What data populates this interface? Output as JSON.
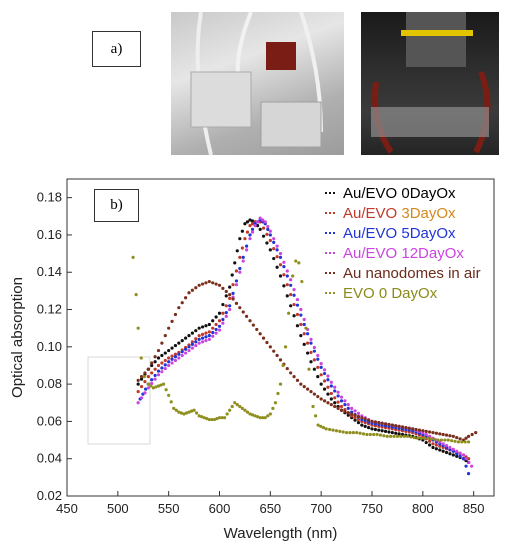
{
  "panels": {
    "a_label": "a)",
    "b_label": "b)"
  },
  "photos": [
    {
      "name": "flow-cell-samples-photo",
      "colors": [
        "#c9c9c9",
        "#7a1d14",
        "#e8e8e8"
      ]
    },
    {
      "name": "microscope-setup-photo",
      "colors": [
        "#1a1a1a",
        "#e2c400",
        "#7a1d14"
      ]
    }
  ],
  "chart_data": {
    "type": "scatter",
    "xlabel": "Wavelength (nm)",
    "ylabel": "Optical absorption",
    "xlim": [
      450,
      870
    ],
    "ylim": [
      0.02,
      0.19
    ],
    "xticks": [
      450,
      500,
      550,
      600,
      650,
      700,
      750,
      800,
      850
    ],
    "yticks": [
      0.02,
      0.04,
      0.06,
      0.08,
      0.1,
      0.12,
      0.14,
      0.16,
      0.18
    ],
    "ytick_labels": [
      "0.02",
      "0.04",
      "0.06",
      "0.08",
      "0.10",
      "0.12",
      "0.14",
      "0.16",
      "0.18"
    ],
    "grid": false,
    "legend_position": "top-right",
    "series": [
      {
        "name": "Au/EVO  0DayOx",
        "name_parts": [
          "Au/EVO  ",
          "0DayOx"
        ],
        "name_colors": [
          "#000000",
          "#000000"
        ],
        "color": "#111111",
        "points": [
          [
            520,
            0.08
          ],
          [
            530,
            0.088
          ],
          [
            540,
            0.094
          ],
          [
            550,
            0.098
          ],
          [
            560,
            0.102
          ],
          [
            570,
            0.106
          ],
          [
            580,
            0.11
          ],
          [
            590,
            0.112
          ],
          [
            600,
            0.118
          ],
          [
            610,
            0.132
          ],
          [
            615,
            0.145
          ],
          [
            620,
            0.158
          ],
          [
            625,
            0.166
          ],
          [
            630,
            0.168
          ],
          [
            635,
            0.167
          ],
          [
            640,
            0.163
          ],
          [
            650,
            0.152
          ],
          [
            660,
            0.138
          ],
          [
            670,
            0.122
          ],
          [
            680,
            0.106
          ],
          [
            690,
            0.092
          ],
          [
            700,
            0.08
          ],
          [
            710,
            0.072
          ],
          [
            720,
            0.066
          ],
          [
            730,
            0.062
          ],
          [
            740,
            0.058
          ],
          [
            750,
            0.056
          ],
          [
            760,
            0.055
          ],
          [
            770,
            0.054
          ],
          [
            780,
            0.053
          ],
          [
            790,
            0.052
          ],
          [
            800,
            0.05
          ],
          [
            810,
            0.046
          ],
          [
            820,
            0.044
          ],
          [
            830,
            0.042
          ],
          [
            840,
            0.04
          ],
          [
            845,
            0.038
          ]
        ]
      },
      {
        "name": "Au/EVO   3DayOx",
        "name_parts": [
          "Au/EVO   ",
          "3DayOx"
        ],
        "name_colors": [
          "#c0392b",
          "#d4881e"
        ],
        "color": "#c0392b",
        "points": [
          [
            520,
            0.076
          ],
          [
            530,
            0.084
          ],
          [
            540,
            0.09
          ],
          [
            550,
            0.094
          ],
          [
            560,
            0.097
          ],
          [
            570,
            0.101
          ],
          [
            580,
            0.106
          ],
          [
            590,
            0.108
          ],
          [
            600,
            0.114
          ],
          [
            610,
            0.126
          ],
          [
            620,
            0.148
          ],
          [
            625,
            0.158
          ],
          [
            630,
            0.165
          ],
          [
            635,
            0.167
          ],
          [
            640,
            0.167
          ],
          [
            650,
            0.157
          ],
          [
            660,
            0.144
          ],
          [
            670,
            0.128
          ],
          [
            680,
            0.112
          ],
          [
            690,
            0.097
          ],
          [
            700,
            0.085
          ],
          [
            710,
            0.075
          ],
          [
            720,
            0.068
          ],
          [
            730,
            0.063
          ],
          [
            740,
            0.06
          ],
          [
            750,
            0.058
          ],
          [
            760,
            0.057
          ],
          [
            770,
            0.056
          ],
          [
            780,
            0.055
          ],
          [
            790,
            0.054
          ],
          [
            800,
            0.052
          ],
          [
            810,
            0.048
          ],
          [
            820,
            0.046
          ],
          [
            830,
            0.044
          ],
          [
            840,
            0.042
          ],
          [
            845,
            0.04
          ]
        ]
      },
      {
        "name": "Au/EVO   5DayOx",
        "name_parts": [
          "Au/EVO   ",
          "5DayOx"
        ],
        "name_colors": [
          "#1f35d6",
          "#1f35d6"
        ],
        "color": "#1f35d6",
        "points": [
          [
            522,
            0.072
          ],
          [
            530,
            0.08
          ],
          [
            540,
            0.087
          ],
          [
            550,
            0.092
          ],
          [
            560,
            0.096
          ],
          [
            570,
            0.1
          ],
          [
            580,
            0.104
          ],
          [
            590,
            0.106
          ],
          [
            600,
            0.111
          ],
          [
            610,
            0.122
          ],
          [
            620,
            0.142
          ],
          [
            630,
            0.16
          ],
          [
            635,
            0.166
          ],
          [
            640,
            0.168
          ],
          [
            645,
            0.166
          ],
          [
            650,
            0.16
          ],
          [
            660,
            0.148
          ],
          [
            670,
            0.133
          ],
          [
            680,
            0.117
          ],
          [
            690,
            0.102
          ],
          [
            700,
            0.089
          ],
          [
            710,
            0.079
          ],
          [
            720,
            0.071
          ],
          [
            730,
            0.065
          ],
          [
            740,
            0.061
          ],
          [
            750,
            0.059
          ],
          [
            760,
            0.058
          ],
          [
            770,
            0.057
          ],
          [
            780,
            0.056
          ],
          [
            790,
            0.055
          ],
          [
            800,
            0.053
          ],
          [
            810,
            0.05
          ],
          [
            820,
            0.047
          ],
          [
            830,
            0.044
          ],
          [
            840,
            0.04
          ],
          [
            845,
            0.032
          ]
        ]
      },
      {
        "name": "Au/EVO 12DayOx",
        "name_parts": [
          "Au/EVO 12DayOx"
        ],
        "name_colors": [
          "#cc44e0"
        ],
        "color": "#cc44e0",
        "points": [
          [
            520,
            0.07
          ],
          [
            530,
            0.078
          ],
          [
            540,
            0.085
          ],
          [
            550,
            0.09
          ],
          [
            560,
            0.094
          ],
          [
            570,
            0.098
          ],
          [
            580,
            0.102
          ],
          [
            590,
            0.104
          ],
          [
            600,
            0.109
          ],
          [
            610,
            0.12
          ],
          [
            620,
            0.14
          ],
          [
            630,
            0.158
          ],
          [
            635,
            0.165
          ],
          [
            640,
            0.169
          ],
          [
            645,
            0.167
          ],
          [
            650,
            0.162
          ],
          [
            660,
            0.15
          ],
          [
            670,
            0.136
          ],
          [
            680,
            0.12
          ],
          [
            690,
            0.104
          ],
          [
            700,
            0.091
          ],
          [
            710,
            0.081
          ],
          [
            720,
            0.073
          ],
          [
            730,
            0.067
          ],
          [
            740,
            0.063
          ],
          [
            750,
            0.06
          ],
          [
            760,
            0.059
          ],
          [
            770,
            0.058
          ],
          [
            780,
            0.057
          ],
          [
            790,
            0.056
          ],
          [
            800,
            0.054
          ],
          [
            810,
            0.051
          ],
          [
            820,
            0.048
          ],
          [
            830,
            0.045
          ],
          [
            840,
            0.042
          ],
          [
            848,
            0.036
          ]
        ]
      },
      {
        "name": "Au nanodomes in air",
        "name_parts": [
          "Au nanodomes in air"
        ],
        "name_colors": [
          "#6b2a1a"
        ],
        "color": "#7a2e1c",
        "points": [
          [
            520,
            0.082
          ],
          [
            530,
            0.088
          ],
          [
            540,
            0.098
          ],
          [
            550,
            0.11
          ],
          [
            560,
            0.121
          ],
          [
            570,
            0.129
          ],
          [
            580,
            0.133
          ],
          [
            590,
            0.135
          ],
          [
            600,
            0.133
          ],
          [
            610,
            0.128
          ],
          [
            620,
            0.121
          ],
          [
            630,
            0.114
          ],
          [
            640,
            0.107
          ],
          [
            650,
            0.1
          ],
          [
            660,
            0.093
          ],
          [
            670,
            0.086
          ],
          [
            680,
            0.08
          ],
          [
            690,
            0.076
          ],
          [
            700,
            0.072
          ],
          [
            710,
            0.069
          ],
          [
            720,
            0.066
          ],
          [
            730,
            0.064
          ],
          [
            740,
            0.062
          ],
          [
            750,
            0.06
          ],
          [
            760,
            0.059
          ],
          [
            770,
            0.058
          ],
          [
            780,
            0.057
          ],
          [
            790,
            0.056
          ],
          [
            800,
            0.055
          ],
          [
            810,
            0.054
          ],
          [
            820,
            0.053
          ],
          [
            830,
            0.052
          ],
          [
            840,
            0.05
          ],
          [
            845,
            0.052
          ],
          [
            852,
            0.054
          ]
        ]
      },
      {
        "name": "EVO 0 DayOx",
        "name_parts": [
          "EVO 0 DayOx"
        ],
        "name_colors": [
          "#8a8a1a"
        ],
        "color": "#8f8f1f",
        "points": [
          [
            515,
            0.148
          ],
          [
            518,
            0.128
          ],
          [
            520,
            0.11
          ],
          [
            523,
            0.094
          ],
          [
            526,
            0.084
          ],
          [
            530,
            0.08
          ],
          [
            535,
            0.078
          ],
          [
            540,
            0.079
          ],
          [
            545,
            0.08
          ],
          [
            550,
            0.074
          ],
          [
            555,
            0.067
          ],
          [
            560,
            0.065
          ],
          [
            565,
            0.064
          ],
          [
            570,
            0.065
          ],
          [
            575,
            0.066
          ],
          [
            580,
            0.063
          ],
          [
            585,
            0.062
          ],
          [
            590,
            0.061
          ],
          [
            595,
            0.061
          ],
          [
            600,
            0.062
          ],
          [
            605,
            0.062
          ],
          [
            610,
            0.066
          ],
          [
            615,
            0.07
          ],
          [
            620,
            0.068
          ],
          [
            625,
            0.066
          ],
          [
            630,
            0.064
          ],
          [
            635,
            0.063
          ],
          [
            640,
            0.062
          ],
          [
            645,
            0.062
          ],
          [
            650,
            0.064
          ],
          [
            655,
            0.07
          ],
          [
            660,
            0.08
          ],
          [
            665,
            0.1
          ],
          [
            668,
            0.118
          ],
          [
            672,
            0.138
          ],
          [
            675,
            0.146
          ],
          [
            678,
            0.145
          ],
          [
            681,
            0.135
          ],
          [
            685,
            0.11
          ],
          [
            688,
            0.088
          ],
          [
            692,
            0.068
          ],
          [
            697,
            0.058
          ],
          [
            705,
            0.056
          ],
          [
            715,
            0.055
          ],
          [
            725,
            0.054
          ],
          [
            735,
            0.054
          ],
          [
            745,
            0.053
          ],
          [
            755,
            0.053
          ],
          [
            765,
            0.052
          ],
          [
            775,
            0.052
          ],
          [
            785,
            0.052
          ],
          [
            795,
            0.051
          ],
          [
            805,
            0.051
          ],
          [
            815,
            0.05
          ],
          [
            825,
            0.05
          ],
          [
            835,
            0.049
          ],
          [
            845,
            0.049
          ]
        ]
      }
    ]
  }
}
